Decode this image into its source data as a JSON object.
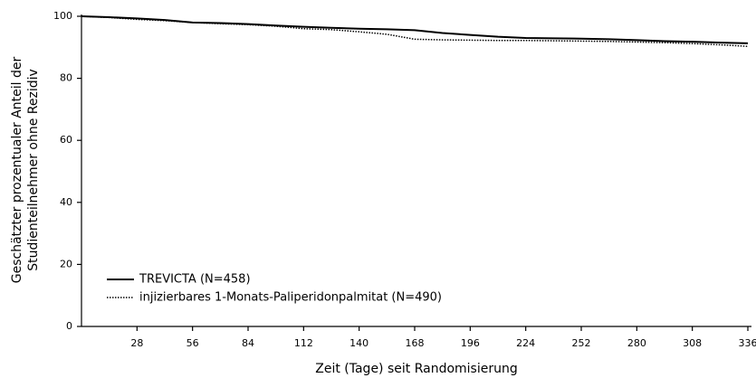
{
  "chart_data": {
    "type": "line",
    "y_label": [
      "Geschätzter prozentualer Anteil der",
      "Studienteilnehmer ohne Rezidiv"
    ],
    "x_label": "Zeit (Tage) seit Randomisierung",
    "x": [
      0,
      14,
      28,
      42,
      56,
      70,
      84,
      98,
      112,
      126,
      140,
      154,
      168,
      182,
      196,
      210,
      224,
      238,
      252,
      266,
      280,
      294,
      308,
      322,
      336
    ],
    "series": [
      {
        "name": "TREVICTA (N=458)",
        "color": "#000000",
        "dash": "solid",
        "values": [
          100,
          99.7,
          99.3,
          98.8,
          98,
          97.8,
          97.5,
          97,
          96.6,
          96.3,
          96,
          95.8,
          95.5,
          94.6,
          94,
          93.4,
          93,
          92.9,
          92.8,
          92.6,
          92.3,
          92,
          91.8,
          91.5,
          91.3
        ]
      },
      {
        "name": "injizierbares 1-Monats-Paliperidonpalmitat (N=490)",
        "color": "#000000",
        "dash": "dotted",
        "values": [
          100,
          99.6,
          99,
          98.6,
          98,
          97.6,
          97.3,
          96.8,
          96,
          95.7,
          95,
          94.2,
          92.6,
          92.4,
          92.3,
          92.2,
          92.2,
          92.1,
          92,
          91.9,
          91.7,
          91.5,
          91.2,
          90.8,
          90.3
        ]
      }
    ],
    "xlim": [
      0,
      336
    ],
    "xticks": [
      28,
      56,
      84,
      112,
      140,
      168,
      196,
      224,
      252,
      280,
      308,
      336
    ],
    "ylim": [
      0,
      100
    ],
    "yticks": [
      0,
      20,
      40,
      60,
      80,
      100
    ],
    "grid": false,
    "legend": "lower left"
  }
}
